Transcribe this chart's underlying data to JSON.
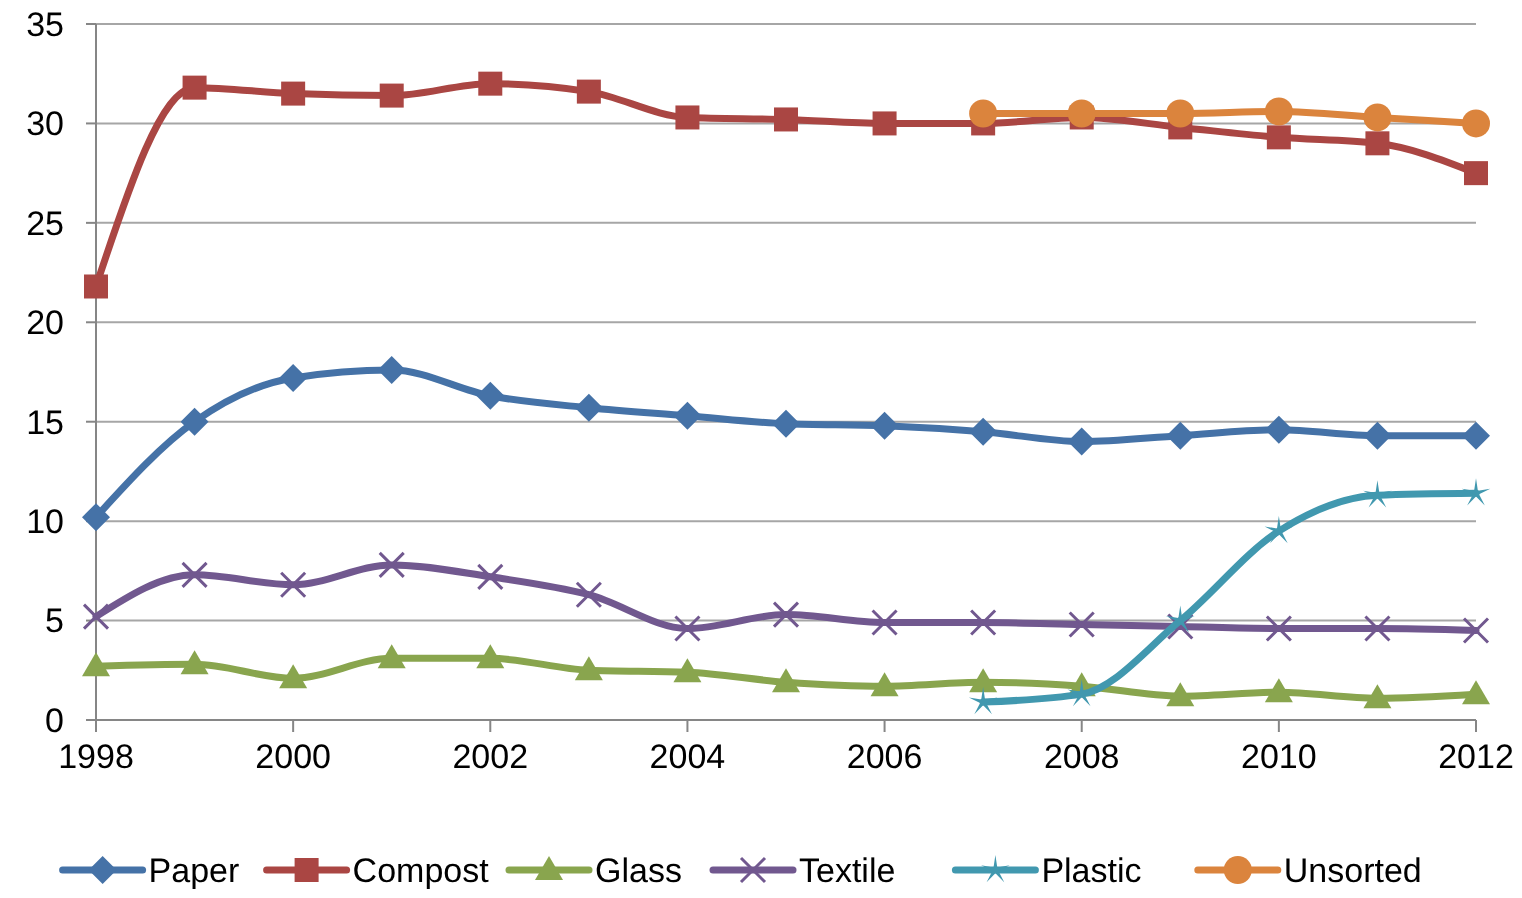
{
  "chart_data": {
    "type": "line",
    "x": [
      1998,
      1999,
      2000,
      2001,
      2002,
      2003,
      2004,
      2005,
      2006,
      2007,
      2008,
      2009,
      2010,
      2011,
      2012
    ],
    "xlim": [
      1998,
      2012
    ],
    "xticks": [
      1998,
      2000,
      2002,
      2004,
      2006,
      2008,
      2010,
      2012
    ],
    "ylim": [
      0,
      35
    ],
    "yticks": [
      0,
      5,
      10,
      15,
      20,
      25,
      30,
      35
    ],
    "grid": "y",
    "legend": "bottom",
    "series": [
      {
        "name": "Paper",
        "color": "#4572a7",
        "marker": "diamond",
        "values": [
          10.2,
          15,
          17.2,
          17.6,
          16.3,
          15.7,
          15.3,
          14.9,
          14.8,
          14.5,
          14.0,
          14.3,
          14.6,
          14.3,
          14.3
        ]
      },
      {
        "name": "Compost",
        "color": "#aa4643",
        "marker": "square",
        "values": [
          21.8,
          31.8,
          31.5,
          31.4,
          32,
          31.6,
          30.3,
          30.2,
          30.0,
          30.0,
          30.3,
          29.8,
          29.3,
          29.0,
          27.5
        ]
      },
      {
        "name": "Glass",
        "color": "#89a54e",
        "marker": "triangle",
        "values": [
          2.7,
          2.8,
          2.1,
          3.1,
          3.1,
          2.5,
          2.4,
          1.9,
          1.7,
          1.9,
          1.7,
          1.2,
          1.4,
          1.1,
          1.3
        ]
      },
      {
        "name": "Textile",
        "color": "#71588f",
        "marker": "cross",
        "values": [
          5.2,
          7.3,
          6.8,
          7.8,
          7.2,
          6.3,
          4.6,
          5.3,
          4.9,
          4.9,
          4.8,
          4.7,
          4.6,
          4.6,
          4.5
        ]
      },
      {
        "name": "Plastic",
        "color": "#4198af",
        "marker": "star",
        "x": [
          2007,
          2008,
          2009,
          2010,
          2011,
          2012
        ],
        "values": [
          0.9,
          1.3,
          5.0,
          9.5,
          11.3,
          11.4
        ]
      },
      {
        "name": "Unsorted",
        "color": "#db843d",
        "marker": "circle",
        "x": [
          2007,
          2008,
          2009,
          2010,
          2011,
          2012
        ],
        "values": [
          30.5,
          30.5,
          30.5,
          30.6,
          30.3,
          30.0
        ]
      }
    ]
  }
}
